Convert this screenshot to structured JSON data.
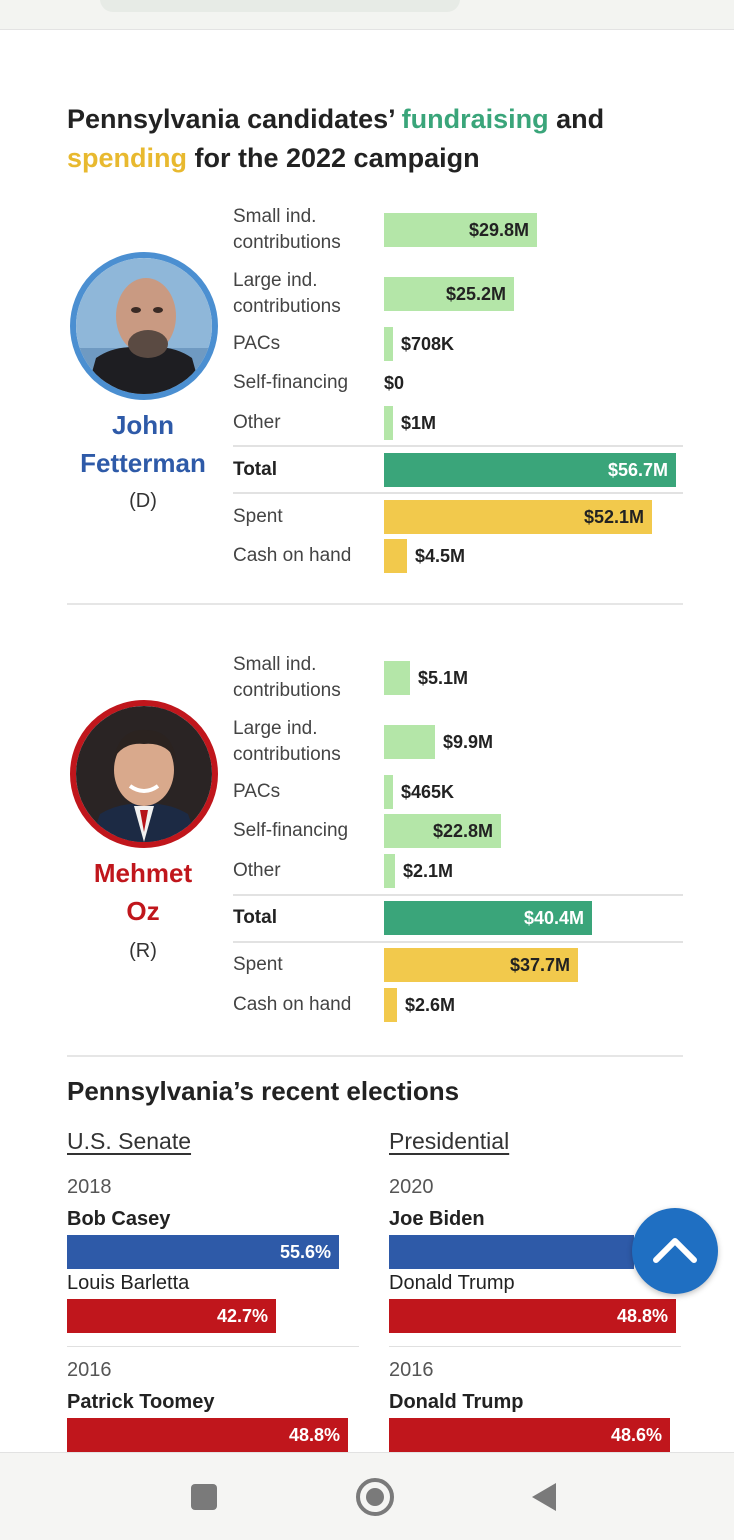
{
  "title": {
    "part1": "Pennsylvania candidates’ ",
    "fundraising": "fundraising",
    "and": " and",
    "spending": "spending",
    "part2": " for the 2022 campaign"
  },
  "colors": {
    "contribution_bar": "#b4e6a8",
    "total_bar": "#3aa57a",
    "spending_bar": "#f2c94c",
    "democrat": "#2e5aa8",
    "republican": "#c0161c",
    "dem_bar": "#2e5aa8",
    "rep_bar": "#c0161c",
    "scroll_button": "#1f6fc2"
  },
  "chart_data": [
    {
      "type": "bar",
      "candidate": "John Fetterman",
      "party": "(D)",
      "categories": [
        "Small ind. contributions",
        "Large ind. contributions",
        "PACs",
        "Self-financing",
        "Other",
        "Total",
        "Spent",
        "Cash on hand"
      ],
      "values": [
        29.8,
        25.2,
        0.708,
        0,
        1,
        56.7,
        52.1,
        4.5
      ],
      "value_labels": [
        "$29.8M",
        "$25.2M",
        "$708K",
        "$0",
        "$1M",
        "$56.7M",
        "$52.1M",
        "$4.5M"
      ],
      "unit": "$M",
      "xlim": [
        0,
        56.7
      ]
    },
    {
      "type": "bar",
      "candidate": "Mehmet Oz",
      "party": "(R)",
      "categories": [
        "Small ind. contributions",
        "Large ind. contributions",
        "PACs",
        "Self-financing",
        "Other",
        "Total",
        "Spent",
        "Cash on hand"
      ],
      "values": [
        5.1,
        9.9,
        0.465,
        22.8,
        2.1,
        40.4,
        37.7,
        2.6
      ],
      "value_labels": [
        "$5.1M",
        "$9.9M",
        "$465K",
        "$22.8M",
        "$2.1M",
        "$40.4M",
        "$37.7M",
        "$2.6M"
      ],
      "unit": "$M",
      "xlim": [
        0,
        56.7
      ]
    },
    {
      "type": "bar",
      "title": "Pennsylvania’s recent elections",
      "columns": [
        {
          "heading": "U.S. Senate",
          "elections": [
            {
              "year": "2018",
              "candidates": [
                {
                  "name": "Bob Casey",
                  "percent": 55.6,
                  "label": "55.6%",
                  "party": "D",
                  "winner": true
                },
                {
                  "name": "Louis Barletta",
                  "percent": 42.7,
                  "label": "42.7%",
                  "party": "R",
                  "winner": false
                }
              ]
            },
            {
              "year": "2016",
              "candidates": [
                {
                  "name": "Patrick Toomey",
                  "percent": 48.8,
                  "label": "48.8%",
                  "party": "R",
                  "winner": true
                }
              ]
            }
          ]
        },
        {
          "heading": "Presidential",
          "elections": [
            {
              "year": "2020",
              "candidates": [
                {
                  "name": "Joe Biden",
                  "percent": null,
                  "label": "",
                  "party": "D",
                  "winner": true
                },
                {
                  "name": "Donald Trump",
                  "percent": 48.8,
                  "label": "48.8%",
                  "party": "R",
                  "winner": false
                }
              ]
            },
            {
              "year": "2016",
              "candidates": [
                {
                  "name": "Donald Trump",
                  "percent": 48.6,
                  "label": "48.6%",
                  "party": "R",
                  "winner": true
                }
              ]
            }
          ]
        }
      ]
    }
  ],
  "icons": {
    "scroll_top": "chevron-up-icon",
    "nav_recents": "square-icon",
    "nav_home": "circle-icon",
    "nav_back": "triangle-back-icon"
  }
}
